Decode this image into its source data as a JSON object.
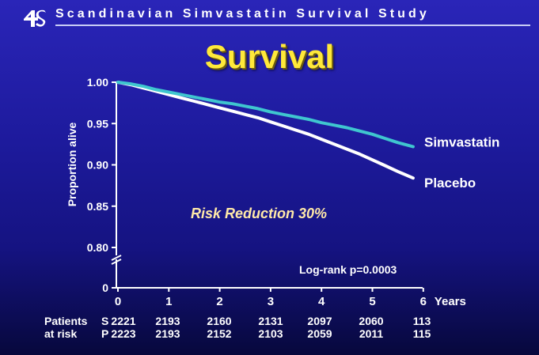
{
  "header": {
    "title": "Scandinavian Simvastatin Survival Study",
    "logo_icon": "4s-logo-icon"
  },
  "slide_title": "Survival",
  "colors": {
    "background": "#1d1a9c",
    "title": "#ffe93a",
    "simvastatin": "#3fc6cf",
    "placebo": "#ffffff",
    "annotation": "#ffe9a8"
  },
  "chart_data": {
    "type": "line",
    "title": "Survival",
    "ylabel": "Proportion alive",
    "xlabel": "Years",
    "ylim": [
      0.8,
      1.0
    ],
    "y_axis_break": true,
    "y_ticks": [
      "1.00",
      "0.95",
      "0.90",
      "0.85",
      "0.80",
      "0"
    ],
    "x_ticks": [
      "0",
      "1",
      "2",
      "3",
      "4",
      "5",
      "6"
    ],
    "series": [
      {
        "name": "Simvastatin",
        "x": [
          0,
          0.25,
          0.5,
          0.75,
          1,
          1.25,
          1.5,
          1.75,
          2,
          2.25,
          2.5,
          2.75,
          3,
          3.25,
          3.5,
          3.75,
          4,
          4.25,
          4.5,
          4.75,
          5,
          5.25,
          5.5,
          5.8
        ],
        "values": [
          1.0,
          0.998,
          0.995,
          0.991,
          0.988,
          0.985,
          0.982,
          0.979,
          0.976,
          0.974,
          0.971,
          0.968,
          0.964,
          0.961,
          0.958,
          0.955,
          0.951,
          0.948,
          0.945,
          0.941,
          0.937,
          0.932,
          0.927,
          0.922
        ]
      },
      {
        "name": "Placebo",
        "x": [
          0,
          0.25,
          0.5,
          0.75,
          1,
          1.25,
          1.5,
          1.75,
          2,
          2.25,
          2.5,
          2.75,
          3,
          3.25,
          3.5,
          3.75,
          4,
          4.25,
          4.5,
          4.75,
          5,
          5.25,
          5.5,
          5.8
        ],
        "values": [
          1.0,
          0.997,
          0.993,
          0.989,
          0.985,
          0.981,
          0.977,
          0.973,
          0.969,
          0.965,
          0.961,
          0.957,
          0.952,
          0.947,
          0.942,
          0.937,
          0.931,
          0.925,
          0.919,
          0.913,
          0.906,
          0.899,
          0.892,
          0.884
        ]
      }
    ],
    "annotations": {
      "risk_reduction": "Risk Reduction 30%",
      "log_rank": "Log-rank p=0.0003"
    },
    "patients_at_risk": {
      "label_line1": "Patients",
      "label_line2": "at risk",
      "simvastatin_prefix": "S",
      "placebo_prefix": "P",
      "simvastatin": [
        "2221",
        "2193",
        "2160",
        "2131",
        "2097",
        "2060",
        "113"
      ],
      "placebo": [
        "2223",
        "2193",
        "2152",
        "2103",
        "2059",
        "2011",
        "115"
      ]
    }
  }
}
